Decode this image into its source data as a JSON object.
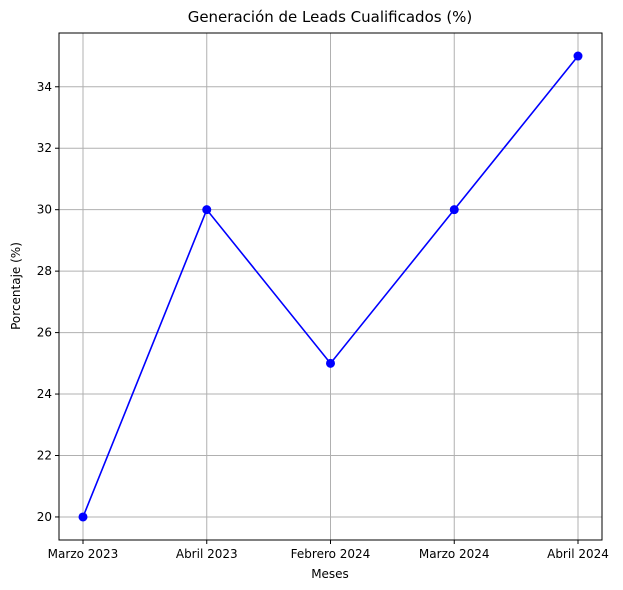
{
  "chart_data": {
    "type": "line",
    "title": "Generación de Leads Cualificados (%)",
    "xlabel": "Meses",
    "ylabel": "Porcentaje (%)",
    "categories": [
      "Marzo 2023",
      "Abril 2023",
      "Febrero 2024",
      "Marzo 2024",
      "Abril 2024"
    ],
    "series": [
      {
        "values": [
          20,
          30,
          25,
          30,
          35
        ],
        "color": "#0000ff",
        "marker": "circle"
      }
    ],
    "ylim": [
      19.25,
      35.75
    ],
    "yticks": [
      20,
      22,
      24,
      26,
      28,
      30,
      32,
      34
    ],
    "grid": true,
    "legend": "none"
  }
}
